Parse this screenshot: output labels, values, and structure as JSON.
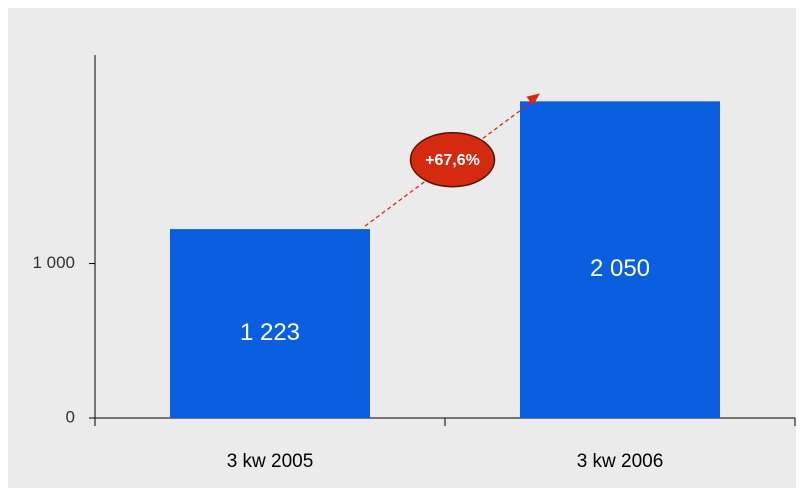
{
  "chart_data": {
    "type": "bar",
    "categories": [
      "3 kw 2005",
      "3 kw 2006"
    ],
    "values": [
      1223,
      2050
    ],
    "value_labels": [
      "1 223",
      "2 050"
    ],
    "color": "#0a5fe0",
    "ylim": [
      0,
      2350
    ],
    "yticks": [
      0,
      {
        "value": 1000,
        "label": "1 000"
      }
    ],
    "annotation": "+67,6%"
  }
}
